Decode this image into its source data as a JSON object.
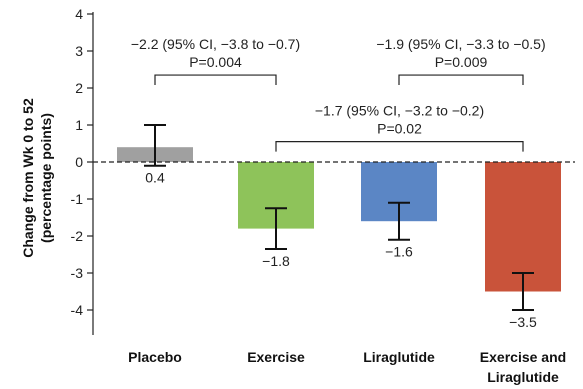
{
  "chart_data": {
    "type": "bar",
    "title": "",
    "xlabel": "",
    "ylabel_line1": "Change from Wk 0 to 52",
    "ylabel_line2": "(percentage points)",
    "ylim": [
      -4.6,
      4.1
    ],
    "yticks": [
      {
        "value": 4,
        "label": "4"
      },
      {
        "value": 3,
        "label": "3"
      },
      {
        "value": 2,
        "label": "2"
      },
      {
        "value": 1,
        "label": "1"
      },
      {
        "value": 0,
        "label": "0"
      },
      {
        "value": -1,
        "label": "-1"
      },
      {
        "value": -2,
        "label": "-2"
      },
      {
        "value": -3,
        "label": "-3"
      },
      {
        "value": -4,
        "label": "-4"
      }
    ],
    "grid": false,
    "categories": [
      "Placebo",
      "Exercise",
      "Liraglutide",
      "Exercise and Liraglutide"
    ],
    "category_label_lines": [
      [
        "Placebo"
      ],
      [
        "Exercise"
      ],
      [
        "Liraglutide"
      ],
      [
        "Exercise and",
        "Liraglutide"
      ]
    ],
    "values": [
      0.4,
      -1.8,
      -1.6,
      -3.5
    ],
    "value_labels": [
      "0.4",
      "−1.8",
      "−1.6",
      "−3.5"
    ],
    "error_bars": [
      {
        "low": -0.1,
        "high": 1.0
      },
      {
        "low": -2.35,
        "high": -1.25
      },
      {
        "low": -2.1,
        "high": -1.1
      },
      {
        "low": -4.0,
        "high": -3.0
      }
    ],
    "colors": [
      "#a0a0a0",
      "#8ec35a",
      "#5b86c5",
      "#c9533a"
    ],
    "comparisons": [
      {
        "from": 0,
        "to": 1,
        "line1": "−2.2 (95% CI, −3.8 to −0.7)",
        "line2": "P=0.004",
        "level": 2.35
      },
      {
        "from": 2,
        "to": 3,
        "line1": "−1.9 (95% CI, −3.3 to −0.5)",
        "line2": "P=0.009",
        "level": 2.35
      },
      {
        "from": 1,
        "to": 3,
        "line1": "−1.7 (95% CI, −3.2 to −0.2)",
        "line2": "P=0.02",
        "level": 0.55
      }
    ]
  }
}
